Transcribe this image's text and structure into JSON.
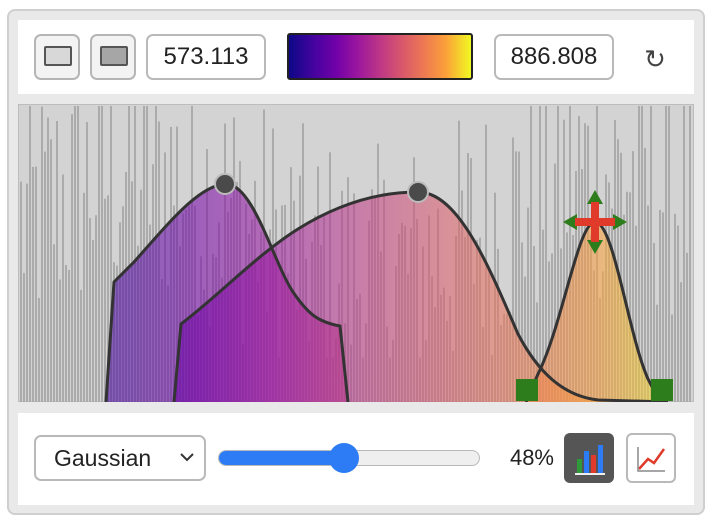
{
  "toolbar": {
    "swatch_light_color": "#d8d8d8",
    "swatch_dark_color": "#a6a6a6",
    "min_value": "573.113",
    "max_value": "886.808",
    "colormap_name": "plasma",
    "reset_icon": "↻"
  },
  "plot": {
    "background_color": "#d3d3d3",
    "histogram_bar_color": "#ababab",
    "curve_color": "#333333",
    "handle_color": "#4a4a4a",
    "anchor_color": "#2e7d1d",
    "move_handle_color": "#e03a2a",
    "move_arrow_color": "#2e7d1d"
  },
  "bottom": {
    "function_select": "Gaussian",
    "slider_value": 48,
    "slider_percent_text": "48%",
    "bars_icon": "bar-chart-icon",
    "line_icon": "line-chart-icon"
  }
}
